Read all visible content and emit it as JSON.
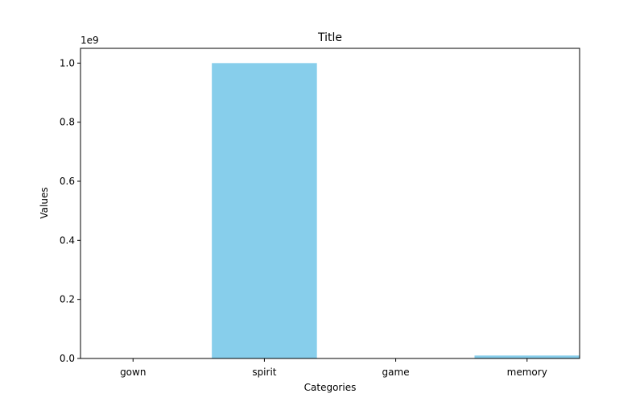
{
  "chart_data": {
    "type": "bar",
    "title": "Title",
    "xlabel": "Categories",
    "ylabel": "Values",
    "y_scale_label": "1e9",
    "categories": [
      "gown",
      "spirit",
      "game",
      "memory"
    ],
    "values": [
      150,
      1000000000,
      1000,
      10000000
    ],
    "ylim": [
      0,
      1050000000
    ],
    "yticks": [
      0,
      200000000,
      400000000,
      600000000,
      800000000,
      1000000000
    ],
    "ytick_labels": [
      "0.0",
      "0.2",
      "0.4",
      "0.6",
      "0.8",
      "1.0"
    ],
    "bar_color": "#87ceeb",
    "grid": false,
    "legend": "none"
  }
}
